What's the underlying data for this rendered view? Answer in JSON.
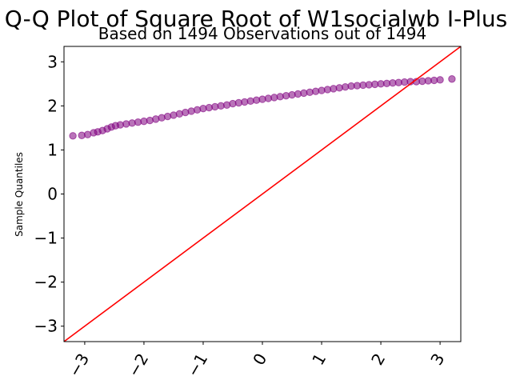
{
  "chart_data": {
    "type": "scatter",
    "title": "Q-Q Plot of Square Root of W1socialwb I-Plus",
    "subtitle": "Based on 1494 Observations out of 1494",
    "xlabel": "",
    "ylabel": "Sample Quantiles",
    "xlim": [
      -3.35,
      3.35
    ],
    "ylim": [
      -3.35,
      3.35
    ],
    "xticks": [
      -3,
      -2,
      -1,
      0,
      1,
      2,
      3
    ],
    "yticks": [
      -3,
      -2,
      -1,
      0,
      1,
      2,
      3
    ],
    "xtick_labels": [
      "−3",
      "−2",
      "−1",
      "0",
      "1",
      "2",
      "3"
    ],
    "ytick_labels": [
      "−3",
      "−2",
      "−1",
      "0",
      "1",
      "2",
      "3"
    ],
    "grid": false,
    "reference_line": {
      "slope": 1,
      "intercept": 0,
      "color": "#ff0000"
    },
    "point_color": "#800080",
    "series": [
      {
        "x": [
          -3.2,
          -3.05,
          -2.95,
          -2.85,
          -2.78,
          -2.7,
          -2.62,
          -2.55,
          -2.48,
          -2.4,
          -2.3,
          -2.2,
          -2.1,
          -2.0,
          -1.9,
          -1.8,
          -1.7,
          -1.6,
          -1.5,
          -1.4,
          -1.3,
          -1.2,
          -1.1,
          -1.0,
          -0.9,
          -0.8,
          -0.7,
          -0.6,
          -0.5,
          -0.4,
          -0.3,
          -0.2,
          -0.1,
          0.0,
          0.1,
          0.2,
          0.3,
          0.4,
          0.5,
          0.6,
          0.7,
          0.8,
          0.9,
          1.0,
          1.1,
          1.2,
          1.3,
          1.4,
          1.5,
          1.6,
          1.7,
          1.8,
          1.9,
          2.0,
          2.1,
          2.2,
          2.3,
          2.4,
          2.5,
          2.6,
          2.7,
          2.8,
          2.9,
          3.0,
          3.2
        ],
        "y": [
          1.32,
          1.33,
          1.35,
          1.39,
          1.41,
          1.44,
          1.48,
          1.52,
          1.55,
          1.57,
          1.59,
          1.61,
          1.63,
          1.65,
          1.67,
          1.7,
          1.73,
          1.76,
          1.79,
          1.82,
          1.85,
          1.88,
          1.91,
          1.94,
          1.96,
          1.98,
          2.0,
          2.02,
          2.05,
          2.07,
          2.09,
          2.11,
          2.13,
          2.15,
          2.17,
          2.19,
          2.21,
          2.23,
          2.25,
          2.27,
          2.29,
          2.31,
          2.33,
          2.35,
          2.37,
          2.39,
          2.41,
          2.43,
          2.45,
          2.46,
          2.47,
          2.48,
          2.49,
          2.5,
          2.51,
          2.52,
          2.53,
          2.54,
          2.55,
          2.55,
          2.56,
          2.57,
          2.58,
          2.59,
          2.61
        ]
      }
    ]
  }
}
